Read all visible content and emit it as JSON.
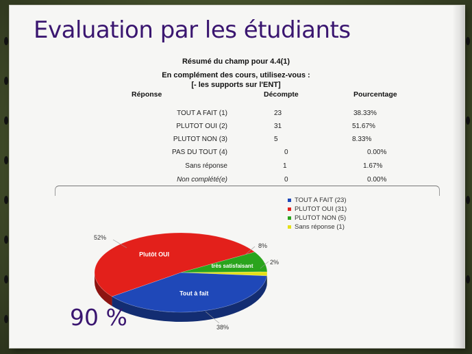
{
  "slide": {
    "title": "Evaluation par les étudiants",
    "subtitle": "Résumé du champ pour 4.4(1)",
    "question_line1": "En complément des cours, utilisez-vous :",
    "question_line2": "[- les supports sur l'ENT]",
    "highlight": "90 %"
  },
  "table": {
    "headers": [
      "Réponse",
      "Décompte",
      "Pourcentage"
    ],
    "rows": [
      {
        "label": "TOUT A FAIT (1)",
        "count": "23",
        "percent": "38.33%"
      },
      {
        "label": "PLUTOT OUI (2)",
        "count": "31",
        "percent": "51.67%"
      },
      {
        "label": "PLUTOT NON (3)",
        "count": "5",
        "percent": "8.33%"
      },
      {
        "label": "PAS DU TOUT (4)",
        "count": "0",
        "percent": "0.00%"
      },
      {
        "label": "Sans réponse",
        "count": "1",
        "percent": "1.67%"
      },
      {
        "label": "Non complété(e)",
        "count": "0",
        "percent": "0.00%"
      }
    ]
  },
  "chart_data": {
    "type": "pie",
    "title": "",
    "slices": [
      {
        "legend": "TOUT A FAIT (23)",
        "inner_label": "Tout à fait",
        "value": 23,
        "pct_label": "38%",
        "color": "#1f48b8"
      },
      {
        "legend": "PLUTOT OUI (31)",
        "inner_label": "Plutôt OUI",
        "value": 31,
        "pct_label": "52%",
        "color": "#e3201b"
      },
      {
        "legend": "PLUTOT NON (5)",
        "inner_label": "très satisfaisant",
        "value": 5,
        "pct_label": "8%",
        "color": "#2aa41c"
      },
      {
        "legend": "Sans réponse (1)",
        "inner_label": "",
        "value": 1,
        "pct_label": "2%",
        "color": "#e6e018"
      }
    ],
    "legend_position": "top-right"
  },
  "colors": {
    "title": "#3a1670",
    "page": "#f6f6f4"
  }
}
